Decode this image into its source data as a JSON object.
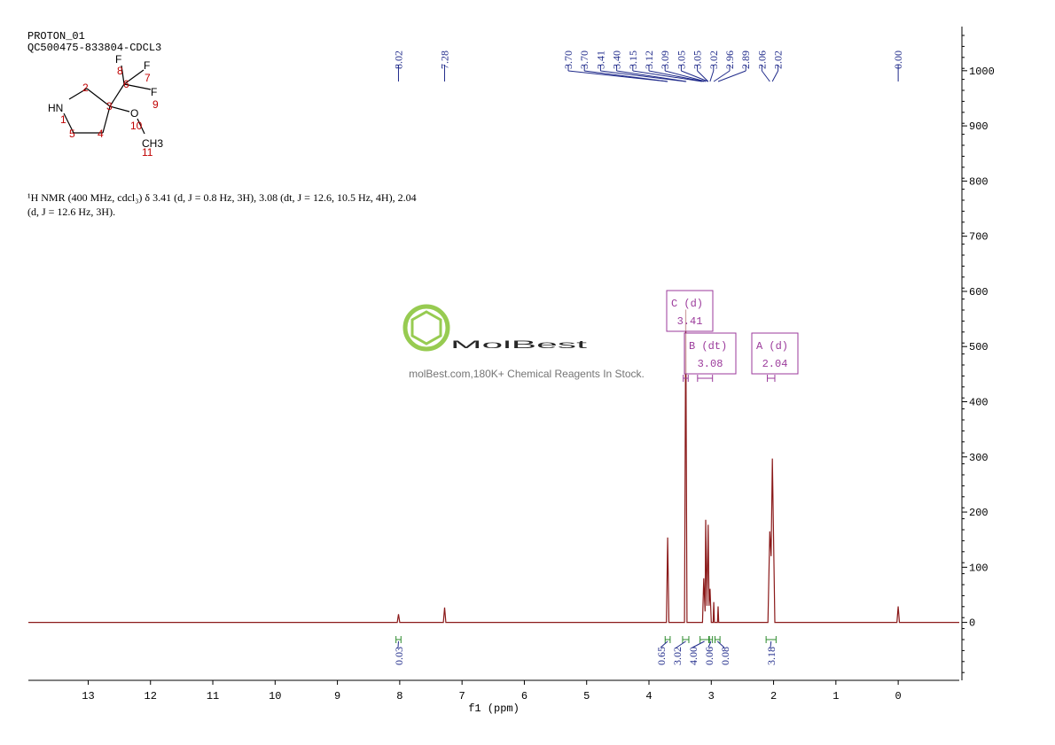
{
  "header": {
    "experiment": "PROTON_01",
    "sample": "QC500475-833804-CDCL3"
  },
  "structure": {
    "atoms": [
      "F",
      "F",
      "F",
      "HN",
      "O",
      "CH3"
    ],
    "locants": [
      8,
      6,
      7,
      2,
      9,
      3,
      1,
      10,
      5,
      4,
      11
    ]
  },
  "description": "¹H NMR (400 MHz, cdcl₃) δ 3.41 (d, J = 0.8 Hz, 3H), 3.08 (dt, J = 12.6, 10.5 Hz, 4H), 2.04 (d, J = 12.6 Hz, 3H).",
  "watermark": {
    "brand": "MolBest",
    "tagline": "molBest.com,180K+ Chemical Reagents In Stock."
  },
  "chart_data": {
    "type": "line",
    "x_label": "f1 (ppm)",
    "xlim": [
      13.96,
      -0.98
    ],
    "xticks": [
      13,
      12,
      11,
      10,
      9,
      8,
      7,
      6,
      5,
      4,
      3,
      2,
      1,
      0
    ],
    "ylim": [
      -105,
      1080
    ],
    "yticks": [
      0,
      100,
      200,
      300,
      400,
      500,
      600,
      700,
      800,
      900,
      1000
    ],
    "series": [
      {
        "color": "#8b1a1a",
        "x": [
          13.96,
          8.04,
          8.02,
          8.0,
          7.3,
          7.28,
          7.26,
          3.72,
          3.7,
          3.68,
          3.43,
          3.41,
          3.39,
          3.14,
          3.12,
          3.1,
          3.09,
          3.07,
          3.05,
          3.035,
          3.02,
          3.0,
          2.97,
          2.96,
          2.95,
          2.9,
          2.89,
          2.88,
          2.09,
          2.06,
          2.04,
          2.02,
          1.98,
          0.02,
          0,
          -0.02,
          -0.98
        ],
        "values": [
          0,
          0,
          15,
          0,
          0,
          27,
          0,
          0,
          154,
          0,
          0,
          567,
          0,
          0,
          80,
          20,
          186,
          30,
          177,
          30,
          61,
          0,
          0,
          37,
          0,
          0,
          29,
          0,
          0,
          165,
          120,
          297,
          0,
          0,
          29,
          0,
          0
        ]
      }
    ],
    "peak_labels": [
      8.02,
      7.28,
      {
        "value": 3.7,
        "label": "3.70"
      },
      {
        "value": 3.7,
        "label": "3.70"
      },
      3.41,
      {
        "value": 3.4,
        "label": "3.40"
      },
      3.15,
      3.12,
      3.09,
      3.05,
      3.05,
      3.02,
      2.96,
      2.89,
      2.06,
      2.02,
      {
        "value": 0,
        "label": "0.00"
      }
    ],
    "multiplets": [
      {
        "label": "C (d)",
        "shift": 3.41,
        "range": [
          3.45,
          3.37
        ]
      },
      {
        "label": "B (dt)",
        "shift": 3.08,
        "range": [
          3.22,
          2.98
        ]
      },
      {
        "label": "A (d)",
        "shift": 2.04,
        "range": [
          2.1,
          1.98
        ]
      }
    ],
    "integrals": [
      {
        "range": [
          8.06,
          7.98
        ],
        "value": 0.03
      },
      {
        "range": [
          3.74,
          3.66
        ],
        "value": 0.65
      },
      {
        "range": [
          3.46,
          3.36
        ],
        "value": 3.02
      },
      {
        "range": [
          3.18,
          3.04
        ],
        "value": {
          "value": 4,
          "label": "4.00"
        }
      },
      {
        "range": [
          3.03,
          2.98
        ],
        "value": 0.06
      },
      {
        "range": [
          2.94,
          2.86
        ],
        "value": 0.08
      },
      {
        "range": [
          2.12,
          1.96
        ],
        "value": 3.18
      }
    ]
  }
}
